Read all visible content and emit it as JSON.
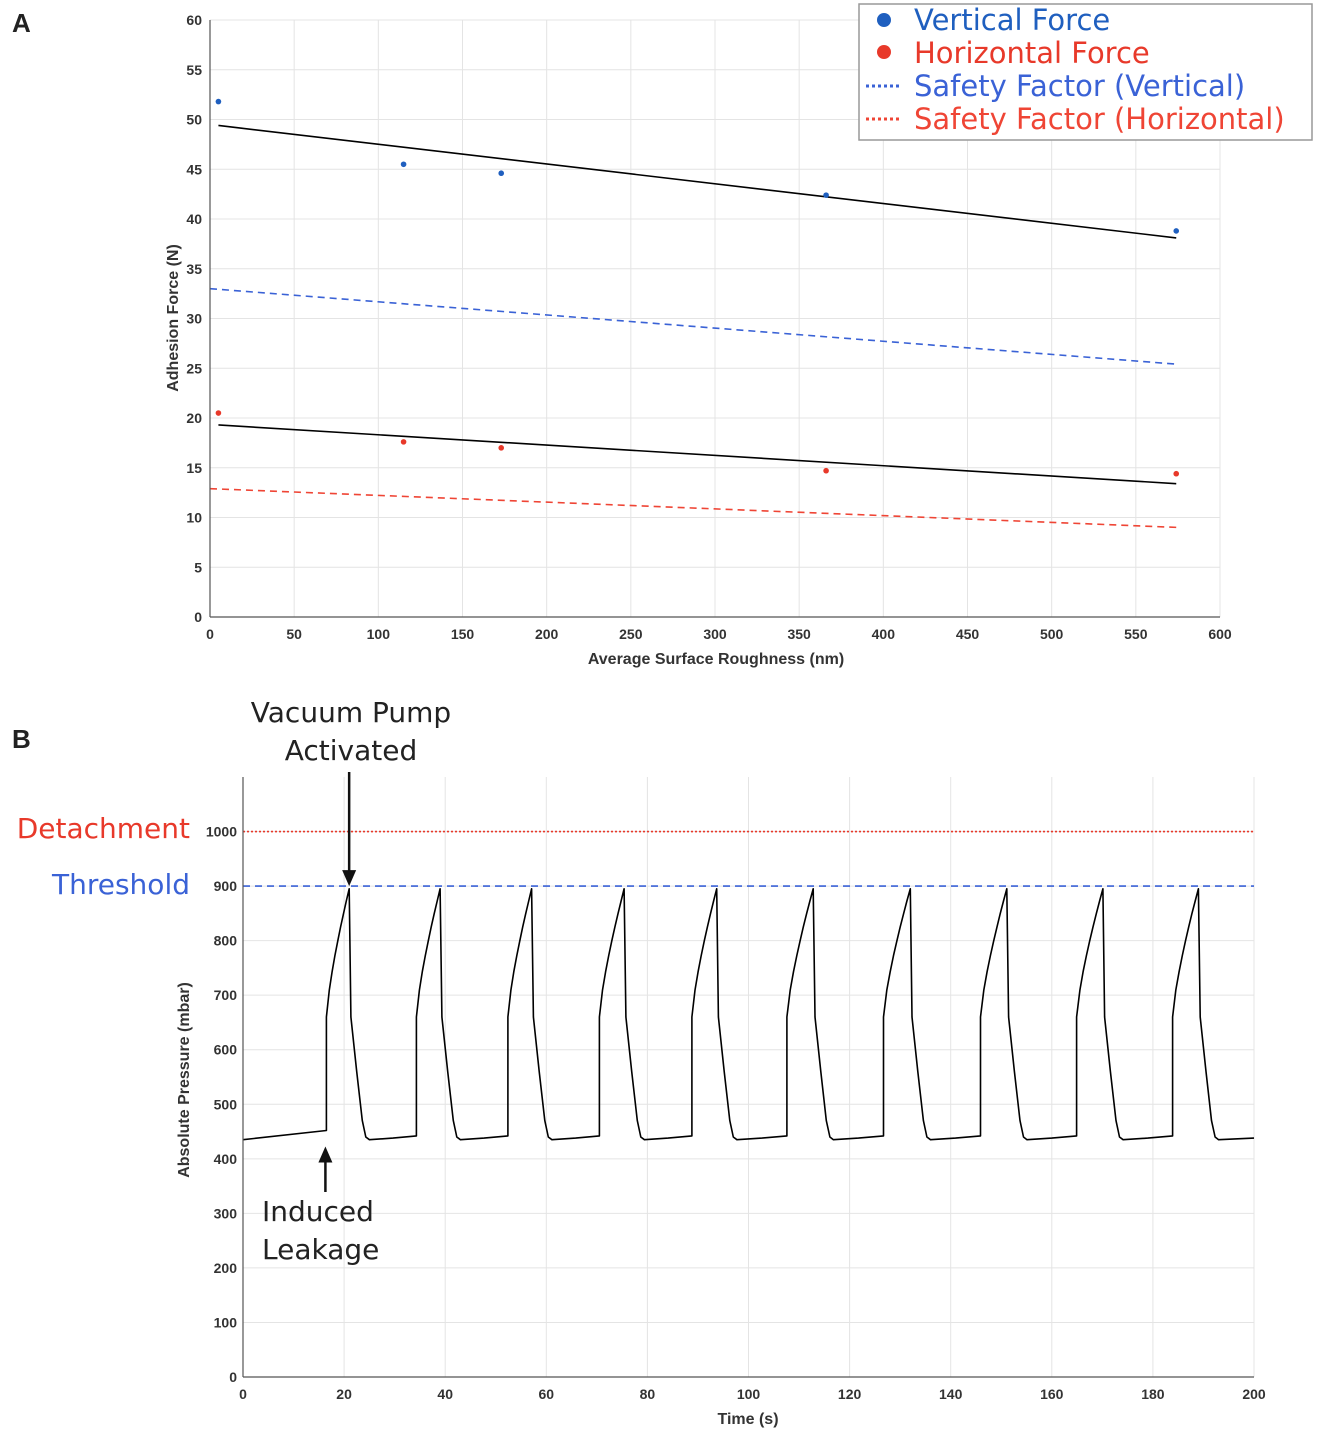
{
  "chart_data": [
    {
      "panel_label": "A",
      "type": "scatter",
      "xlabel": "Average Surface Roughness (nm)",
      "ylabel": "Adhesion Force (N)",
      "xlim": [
        0,
        600
      ],
      "ylim": [
        0,
        60
      ],
      "xticks": [
        "0",
        "50",
        "100",
        "150",
        "200",
        "250",
        "300",
        "350",
        "400",
        "450",
        "500",
        "550",
        "600"
      ],
      "yticks": [
        "0",
        "5",
        "10",
        "15",
        "20",
        "25",
        "30",
        "35",
        "40",
        "45",
        "50",
        "55",
        "60"
      ],
      "grid": true,
      "legend_position": "top-right",
      "series": [
        {
          "name": "Vertical Force",
          "kind": "points",
          "color": "#1f5fbf",
          "x": [
            5,
            115,
            173,
            366,
            574
          ],
          "y": [
            51.8,
            45.5,
            44.6,
            42.4,
            38.8
          ]
        },
        {
          "name": "Horizontal Force",
          "kind": "points",
          "color": "#e8392a",
          "x": [
            5,
            115,
            173,
            366,
            574
          ],
          "y": [
            20.5,
            17.6,
            17.0,
            14.7,
            14.4
          ]
        },
        {
          "name": "Safety Factor (Vertical)",
          "kind": "dashed-line",
          "color": "#3a62d6",
          "x": [
            0,
            575
          ],
          "y": [
            33.0,
            25.4
          ]
        },
        {
          "name": "Safety Factor (Horizontal)",
          "kind": "dashed-line",
          "color": "#ef4535",
          "x": [
            0,
            575
          ],
          "y": [
            12.9,
            9.0
          ]
        }
      ],
      "fit_lines": [
        {
          "color": "#000000",
          "x": [
            5,
            574
          ],
          "y": [
            49.4,
            38.1
          ]
        },
        {
          "color": "#000000",
          "x": [
            5,
            574
          ],
          "y": [
            19.3,
            13.4
          ]
        }
      ]
    },
    {
      "panel_label": "B",
      "type": "line",
      "xlabel": "Time (s)",
      "ylabel": "Absolute Pressure (mbar)",
      "xlim": [
        0,
        200
      ],
      "ylim": [
        0,
        1100
      ],
      "xticks": [
        "0",
        "20",
        "40",
        "60",
        "80",
        "100",
        "120",
        "140",
        "160",
        "180",
        "200"
      ],
      "yticks": [
        "0",
        "100",
        "200",
        "300",
        "400",
        "500",
        "600",
        "700",
        "800",
        "900",
        "1000"
      ],
      "grid": true,
      "reference_lines": [
        {
          "label": "Detachment",
          "y": 1000,
          "color": "#e8392a",
          "style": "dotted"
        },
        {
          "label": "Threshold",
          "y": 900,
          "color": "#3a62d6",
          "style": "dashed"
        }
      ],
      "pressure_trace": {
        "color": "#000000",
        "baseline_start": 435,
        "leak_start_time": 16.5,
        "leak_start_value": 452,
        "jump_value": 660,
        "peak_value": 895,
        "trough_value": 435,
        "cycle_pressure_before_jump": 442,
        "jump_times": [
          16.5,
          34.3,
          52.4,
          70.5,
          88.8,
          107.6,
          126.7,
          145.9,
          164.9,
          183.9
        ],
        "peak_times": [
          21.0,
          39.0,
          57.1,
          75.4,
          93.7,
          112.8,
          132.0,
          151.1,
          170.1,
          189.0
        ],
        "end_time": 200
      },
      "annotations": [
        {
          "text_lines": [
            "Vacuum Pump",
            "Activated"
          ],
          "arrow_target": {
            "x": 21.0,
            "y": 900
          }
        },
        {
          "text_lines": [
            "Induced",
            "Leakage"
          ],
          "arrow_target": {
            "x": 16.5,
            "y": 430
          }
        }
      ]
    }
  ]
}
